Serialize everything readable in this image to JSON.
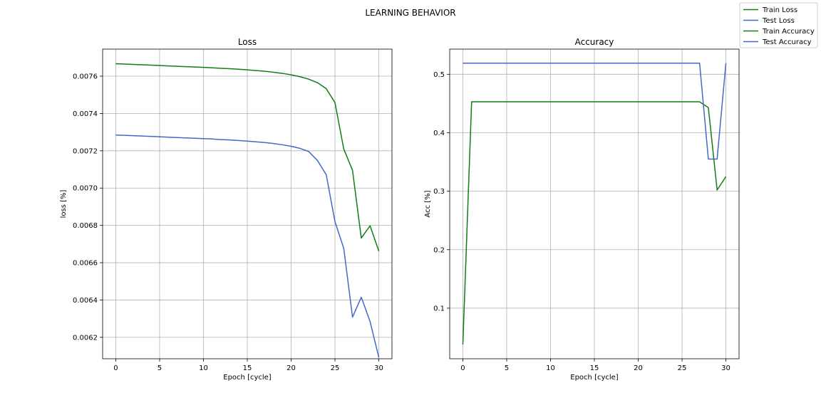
{
  "figure_title": "LEARNING BEHAVIOR",
  "legend": {
    "placement": "top-right",
    "entries": [
      {
        "label": "Train Loss",
        "color": "#137c13"
      },
      {
        "label": "Test Loss",
        "color": "#4169c8"
      },
      {
        "label": "Train Accuracy",
        "color": "#137c13"
      },
      {
        "label": "Test Accuracy",
        "color": "#4169c8"
      }
    ]
  },
  "chart_data": [
    {
      "type": "line",
      "title": "Loss",
      "xlabel": "Epoch [cycle]",
      "ylabel": "loss [%]",
      "grid": true,
      "xlim": [
        -1.5,
        31.5
      ],
      "ylim": [
        0.006085,
        0.007745
      ],
      "xticks": [
        0,
        5,
        10,
        15,
        20,
        25,
        30
      ],
      "xtick_labels": [
        "0",
        "5",
        "10",
        "15",
        "20",
        "25",
        "30"
      ],
      "yticks": [
        0.0062,
        0.0064,
        0.0066,
        0.0068,
        0.007,
        0.0072,
        0.0074,
        0.0076
      ],
      "ytick_labels": [
        "0.0062",
        "0.0064",
        "0.0066",
        "0.0068",
        "0.0070",
        "0.0072",
        "0.0074",
        "0.0076"
      ],
      "x": [
        0,
        1,
        2,
        3,
        4,
        5,
        6,
        7,
        8,
        9,
        10,
        11,
        12,
        13,
        14,
        15,
        16,
        17,
        18,
        19,
        20,
        21,
        22,
        23,
        24,
        25,
        26,
        27,
        28,
        29,
        30
      ],
      "series": [
        {
          "name": "Train Loss",
          "color": "#137c13",
          "values": [
            0.007667,
            0.007665,
            0.007663,
            0.007661,
            0.007659,
            0.007657,
            0.007655,
            0.007653,
            0.007651,
            0.007649,
            0.007647,
            0.007645,
            0.007642,
            0.00764,
            0.007637,
            0.007634,
            0.00763,
            0.007626,
            0.007621,
            0.007615,
            0.007607,
            0.007597,
            0.007584,
            0.007565,
            0.007533,
            0.007458,
            0.00721,
            0.007095,
            0.006732,
            0.006798,
            0.006662
          ]
        },
        {
          "name": "Test Loss",
          "color": "#4169c8",
          "values": [
            0.007284,
            0.007283,
            0.007281,
            0.007279,
            0.007277,
            0.007275,
            0.007273,
            0.007271,
            0.007269,
            0.007267,
            0.007265,
            0.007263,
            0.00726,
            0.007258,
            0.007255,
            0.007252,
            0.007248,
            0.007244,
            0.007239,
            0.007232,
            0.007224,
            0.007213,
            0.007196,
            0.007148,
            0.007072,
            0.00682,
            0.006677,
            0.006308,
            0.006415,
            0.006285,
            0.006092
          ]
        }
      ]
    },
    {
      "type": "line",
      "title": "Accuracy",
      "xlabel": "Epoch [cycle]",
      "ylabel": "Acc [%]",
      "grid": true,
      "xlim": [
        -1.5,
        31.5
      ],
      "ylim": [
        0.0135,
        0.543
      ],
      "xticks": [
        0,
        5,
        10,
        15,
        20,
        25,
        30
      ],
      "xtick_labels": [
        "0",
        "5",
        "10",
        "15",
        "20",
        "25",
        "30"
      ],
      "yticks": [
        0.1,
        0.2,
        0.3,
        0.4,
        0.5
      ],
      "ytick_labels": [
        "0.1",
        "0.2",
        "0.3",
        "0.4",
        "0.5"
      ],
      "x": [
        0,
        1,
        2,
        3,
        4,
        5,
        6,
        7,
        8,
        9,
        10,
        11,
        12,
        13,
        14,
        15,
        16,
        17,
        18,
        19,
        20,
        21,
        22,
        23,
        24,
        25,
        26,
        27,
        28,
        29,
        30
      ],
      "series": [
        {
          "name": "Train Accuracy",
          "color": "#137c13",
          "values": [
            0.038,
            0.453,
            0.453,
            0.453,
            0.453,
            0.453,
            0.453,
            0.453,
            0.453,
            0.453,
            0.453,
            0.453,
            0.453,
            0.453,
            0.453,
            0.453,
            0.453,
            0.453,
            0.453,
            0.453,
            0.453,
            0.453,
            0.453,
            0.453,
            0.453,
            0.453,
            0.453,
            0.453,
            0.443,
            0.302,
            0.325
          ]
        },
        {
          "name": "Test Accuracy",
          "color": "#4169c8",
          "values": [
            0.519,
            0.519,
            0.519,
            0.519,
            0.519,
            0.519,
            0.519,
            0.519,
            0.519,
            0.519,
            0.519,
            0.519,
            0.519,
            0.519,
            0.519,
            0.519,
            0.519,
            0.519,
            0.519,
            0.519,
            0.519,
            0.519,
            0.519,
            0.519,
            0.519,
            0.519,
            0.519,
            0.519,
            0.355,
            0.355,
            0.519
          ]
        }
      ]
    }
  ]
}
